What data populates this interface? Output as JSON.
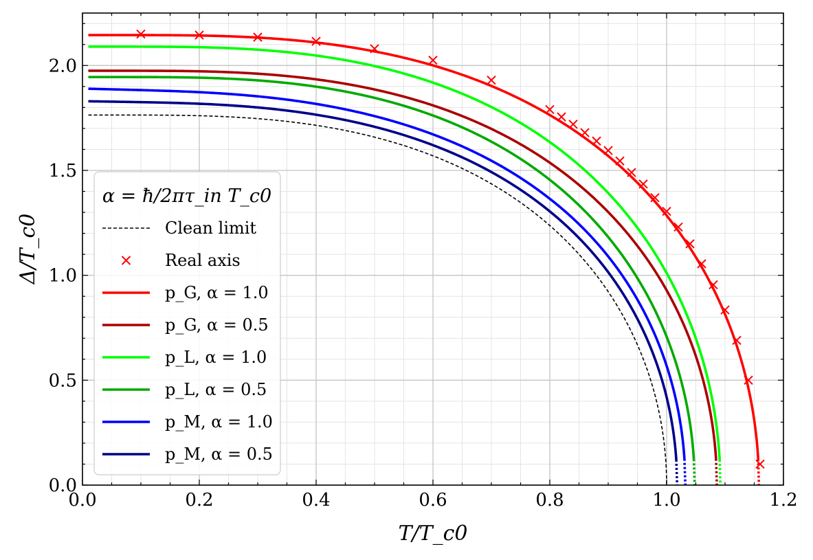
{
  "chart_data": {
    "type": "line",
    "title": "",
    "xlabel": "T/T_c0",
    "ylabel": "Δ/T_c0",
    "xlim": [
      0.0,
      1.2
    ],
    "ylim": [
      0.0,
      2.25
    ],
    "x_ticks": [
      "0.0",
      "0.2",
      "0.4",
      "0.6",
      "0.8",
      "1.0",
      "1.2"
    ],
    "y_ticks": [
      "0.0",
      "0.5",
      "1.0",
      "1.5",
      "2.0"
    ],
    "x_tick_values": [
      0.0,
      0.2,
      0.4,
      0.6,
      0.8,
      1.0,
      1.2
    ],
    "y_tick_values": [
      0.0,
      0.5,
      1.0,
      1.5,
      2.0
    ],
    "grid": true,
    "legend": {
      "position": "lower-left",
      "title": "α = ħ/2πτ_in T_c0",
      "entries": [
        {
          "label": "Clean limit",
          "style": "dashed",
          "color": "#000000"
        },
        {
          "label": "Real axis",
          "style": "marker-x",
          "color": "#ff0000"
        },
        {
          "label": "p_G, α = 1.0",
          "style": "solid",
          "color": "#ff0000"
        },
        {
          "label": "p_G, α = 0.5",
          "style": "solid",
          "color": "#aa0000"
        },
        {
          "label": "p_L, α = 1.0",
          "style": "solid",
          "color": "#00ff00"
        },
        {
          "label": "p_L, α = 0.5",
          "style": "solid",
          "color": "#00aa00"
        },
        {
          "label": "p_M, α = 1.0",
          "style": "solid",
          "color": "#0000ff"
        },
        {
          "label": "p_M, α = 0.5",
          "style": "solid",
          "color": "#000088"
        }
      ]
    },
    "series": [
      {
        "name": "Clean limit",
        "color": "#000000",
        "style": "dashed",
        "delta0": 1.764,
        "tc": 1.0,
        "flat": 0.0
      },
      {
        "name": "p_M, α = 0.5",
        "color": "#000088",
        "style": "solid",
        "delta0": 1.83,
        "tc": 1.018,
        "flat": 0.4,
        "solid_min_y": 0.12
      },
      {
        "name": "p_M, α = 1.0",
        "color": "#0000ff",
        "style": "solid",
        "delta0": 1.89,
        "tc": 1.032,
        "flat": 0.6,
        "solid_min_y": 0.12
      },
      {
        "name": "p_L, α = 0.5",
        "color": "#00aa00",
        "style": "solid",
        "delta0": 1.945,
        "tc": 1.048,
        "flat": 0.0,
        "solid_min_y": 0.12
      },
      {
        "name": "p_G, α = 0.5",
        "color": "#aa0000",
        "style": "solid",
        "delta0": 1.975,
        "tc": 1.086,
        "flat": 0.0,
        "solid_min_y": 0.12
      },
      {
        "name": "p_L, α = 1.0",
        "color": "#00ff00",
        "style": "solid",
        "delta0": 2.09,
        "tc": 1.092,
        "flat": 0.0,
        "solid_min_y": 0.12
      },
      {
        "name": "p_G, α = 1.0",
        "color": "#ff0000",
        "style": "solid",
        "delta0": 2.145,
        "tc": 1.158,
        "flat": 0.0,
        "solid_min_y": 0.12
      }
    ],
    "real_axis_points": {
      "name": "Real axis",
      "color": "#ff0000",
      "x": [
        0.1,
        0.2,
        0.3,
        0.4,
        0.5,
        0.6,
        0.7,
        0.8,
        0.82,
        0.84,
        0.86,
        0.88,
        0.9,
        0.92,
        0.94,
        0.96,
        0.98,
        1.0,
        1.02,
        1.04,
        1.06,
        1.08,
        1.1,
        1.12,
        1.14,
        1.16
      ],
      "y": [
        2.15,
        2.145,
        2.135,
        2.115,
        2.08,
        2.025,
        1.93,
        1.79,
        1.755,
        1.72,
        1.68,
        1.64,
        1.595,
        1.545,
        1.49,
        1.435,
        1.37,
        1.305,
        1.23,
        1.15,
        1.055,
        0.955,
        0.835,
        0.69,
        0.5,
        0.1
      ]
    }
  }
}
